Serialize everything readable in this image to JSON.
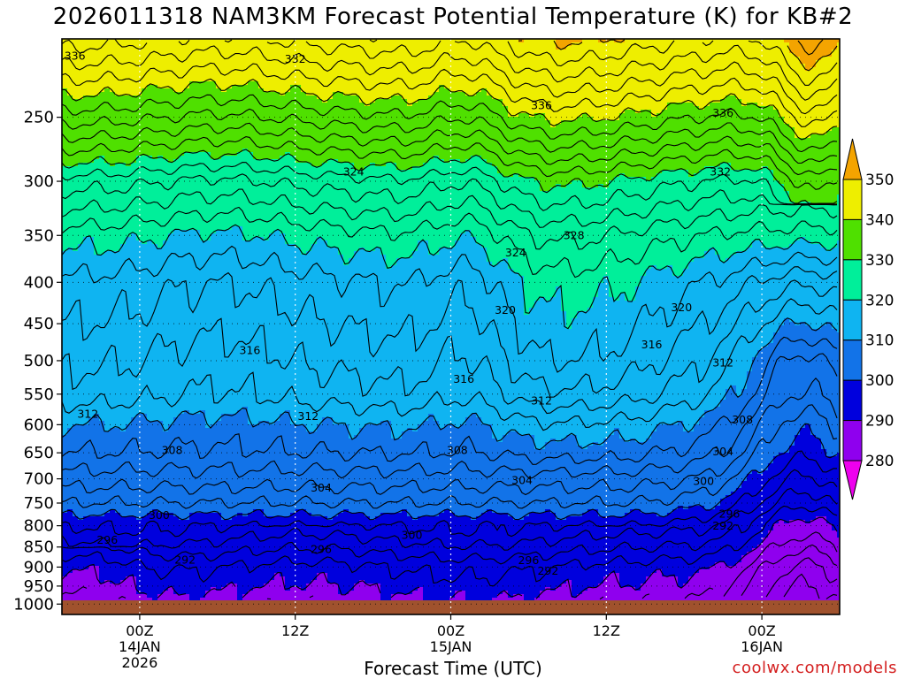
{
  "title": "2026011318 NAM3KM Forecast Potential Temperature (K) for KB#2",
  "credit": "coolwx.com/models",
  "chart_data": {
    "type": "heatmap",
    "title": "2026011318 NAM3KM Forecast Potential Temperature (K) for KB#2",
    "xlabel": "Forecast Time (UTC)",
    "ylabel": "",
    "x_range_hours": [
      0,
      60
    ],
    "x_ticks": [
      {
        "hour": 6,
        "lines": [
          "00Z",
          "14JAN",
          "2026"
        ]
      },
      {
        "hour": 18,
        "lines": [
          "12Z"
        ]
      },
      {
        "hour": 30,
        "lines": [
          "00Z",
          "15JAN"
        ]
      },
      {
        "hour": 42,
        "lines": [
          "12Z"
        ]
      },
      {
        "hour": 54,
        "lines": [
          "00Z",
          "16JAN"
        ]
      }
    ],
    "y_axis": "pressure (hPa), log scale, inverted",
    "y_range": [
      200,
      1030
    ],
    "y_ticks": [
      "250",
      "300",
      "350",
      "400",
      "450",
      "500",
      "550",
      "600",
      "650",
      "700",
      "750",
      "800",
      "850",
      "900",
      "950",
      "1000"
    ],
    "colorbar": {
      "labels": [
        "280",
        "290",
        "300",
        "310",
        "320",
        "330",
        "340",
        "350"
      ],
      "levels": [
        270,
        280,
        290,
        300,
        310,
        320,
        330,
        340,
        350,
        360
      ],
      "colors": [
        "#ee00ee",
        "#8f00ee",
        "#0000dd",
        "#1273e8",
        "#0fb4f1",
        "#00ef9a",
        "#4fe000",
        "#eeee00",
        "#f4a400"
      ]
    },
    "ground_color": "#a0522d",
    "contour_interval": 2,
    "contour_range": [
      282,
      352
    ],
    "contour_labels": [
      {
        "text": "336",
        "hour": 1.0,
        "p": 210
      },
      {
        "text": "332",
        "hour": 18.0,
        "p": 212
      },
      {
        "text": "336",
        "hour": 37.0,
        "p": 242
      },
      {
        "text": "336",
        "hour": 51.0,
        "p": 247
      },
      {
        "text": "324",
        "hour": 22.5,
        "p": 292
      },
      {
        "text": "332",
        "hour": 50.8,
        "p": 292
      },
      {
        "text": "328",
        "hour": 39.5,
        "p": 350
      },
      {
        "text": "324",
        "hour": 35.0,
        "p": 368
      },
      {
        "text": "320",
        "hour": 34.2,
        "p": 433
      },
      {
        "text": "320",
        "hour": 47.8,
        "p": 430
      },
      {
        "text": "316",
        "hour": 14.5,
        "p": 486
      },
      {
        "text": "316",
        "hour": 45.5,
        "p": 478
      },
      {
        "text": "316",
        "hour": 31.0,
        "p": 527
      },
      {
        "text": "312",
        "hour": 51.0,
        "p": 503
      },
      {
        "text": "312",
        "hour": 37.0,
        "p": 561
      },
      {
        "text": "312",
        "hour": 19.0,
        "p": 586
      },
      {
        "text": "312",
        "hour": 2.0,
        "p": 582
      },
      {
        "text": "308",
        "hour": 52.5,
        "p": 592
      },
      {
        "text": "308",
        "hour": 30.5,
        "p": 646
      },
      {
        "text": "308",
        "hour": 8.5,
        "p": 646
      },
      {
        "text": "304",
        "hour": 51.0,
        "p": 648
      },
      {
        "text": "304",
        "hour": 35.5,
        "p": 703
      },
      {
        "text": "304",
        "hour": 20.0,
        "p": 719
      },
      {
        "text": "300",
        "hour": 49.5,
        "p": 705
      },
      {
        "text": "300",
        "hour": 7.5,
        "p": 777
      },
      {
        "text": "300",
        "hour": 27.0,
        "p": 822
      },
      {
        "text": "296",
        "hour": 51.5,
        "p": 774
      },
      {
        "text": "296",
        "hour": 3.5,
        "p": 834
      },
      {
        "text": "296",
        "hour": 20.0,
        "p": 856
      },
      {
        "text": "296",
        "hour": 36.0,
        "p": 883
      },
      {
        "text": "292",
        "hour": 51.0,
        "p": 801
      },
      {
        "text": "292",
        "hour": 9.5,
        "p": 882
      },
      {
        "text": "292",
        "hour": 37.5,
        "p": 910
      }
    ]
  }
}
